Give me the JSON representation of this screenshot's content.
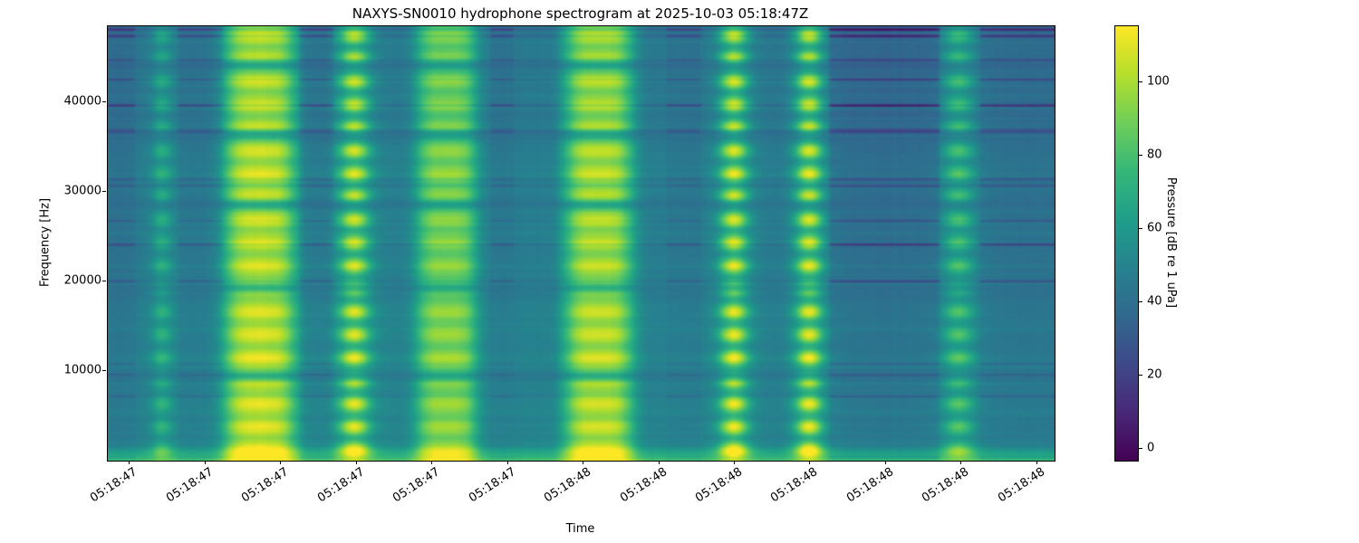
{
  "chart_data": {
    "type": "heatmap",
    "subtype": "hydrophone-spectrogram",
    "title": "NAXYS-SN0010 hydrophone spectrogram at 2025-10-03 05:18:47Z",
    "xlabel": "Time",
    "ylabel": "Frequency [Hz]",
    "x_tick_labels": [
      "05:18:47",
      "05:18:47",
      "05:18:47",
      "05:18:47",
      "05:18:47",
      "05:18:47",
      "05:18:48",
      "05:18:48",
      "05:18:48",
      "05:18:48",
      "05:18:48",
      "05:18:48",
      "05:18:48"
    ],
    "y_tick_values_hz": [
      10000,
      20000,
      30000,
      40000
    ],
    "freq_range_hz": [
      0,
      48500
    ],
    "grid": false,
    "colorbar": {
      "label": "Pressure [dB re 1 uPa]",
      "tick_values_db": [
        0,
        20,
        40,
        60,
        80,
        100
      ],
      "vmin_db": -3.2,
      "vmax_db": 115.4,
      "colormap": "viridis",
      "viridis_colors": [
        "#440154",
        "#482878",
        "#3e4989",
        "#31688e",
        "#26828e",
        "#1f9e89",
        "#35b779",
        "#6ece58",
        "#b5de2b",
        "#fde725"
      ]
    },
    "background_db": 44,
    "low_freq_band": {
      "boost_db": 27,
      "width_hz": 1100
    },
    "harmonic_blob_period_hz": 2570,
    "harmonic_blob_phase_hz": 1200,
    "notch_freqs_hz": [
      9400,
      19300,
      28600,
      36400,
      44200
    ],
    "notch_width_hz": 600,
    "notch_depth": 0.62,
    "ping_pulses": [
      {
        "t": 0.0574,
        "w": 0.0115,
        "peak_db": 24,
        "profile": "narrow"
      },
      {
        "t": 0.1608,
        "w": 0.0383,
        "peak_db": 60,
        "profile": "wide"
      },
      {
        "t": 0.2603,
        "w": 0.0163,
        "peak_db": 58,
        "profile": "narrow"
      },
      {
        "t": 0.3579,
        "w": 0.0325,
        "peak_db": 48,
        "profile": "wide"
      },
      {
        "t": 0.5187,
        "w": 0.0364,
        "peak_db": 57,
        "profile": "wide"
      },
      {
        "t": 0.6612,
        "w": 0.0153,
        "peak_db": 62,
        "profile": "narrow"
      },
      {
        "t": 0.7407,
        "w": 0.0144,
        "peak_db": 62,
        "profile": "narrow"
      },
      {
        "t": 0.8986,
        "w": 0.0163,
        "peak_db": 36,
        "profile": "narrow"
      }
    ],
    "quiet_patches": [
      {
        "t0": 0.0,
        "t1": 0.0287,
        "db": -4,
        "streak": 1.5
      },
      {
        "t0": 0.0746,
        "t1": 0.1206,
        "db": -3,
        "streak": 1.2
      },
      {
        "t0": 0.2029,
        "t1": 0.2373,
        "db": -5,
        "streak": 1.4
      },
      {
        "t0": 0.4038,
        "t1": 0.4278,
        "db": -4,
        "streak": 1.2
      },
      {
        "t0": 0.5904,
        "t1": 0.6258,
        "db": -3,
        "streak": 1.2
      },
      {
        "t0": 0.7627,
        "t1": 0.8775,
        "db": -7,
        "streak": 2.2
      },
      {
        "t0": 0.9206,
        "t1": 1.0,
        "db": -4,
        "streak": 1.8
      }
    ],
    "noise": {
      "seed": 20251003,
      "row_noise_db": 3.5,
      "streak_probability": 0.08,
      "streak_db_base": -5,
      "streak_db_extra": -11,
      "column_noise_db": 1.2
    }
  }
}
